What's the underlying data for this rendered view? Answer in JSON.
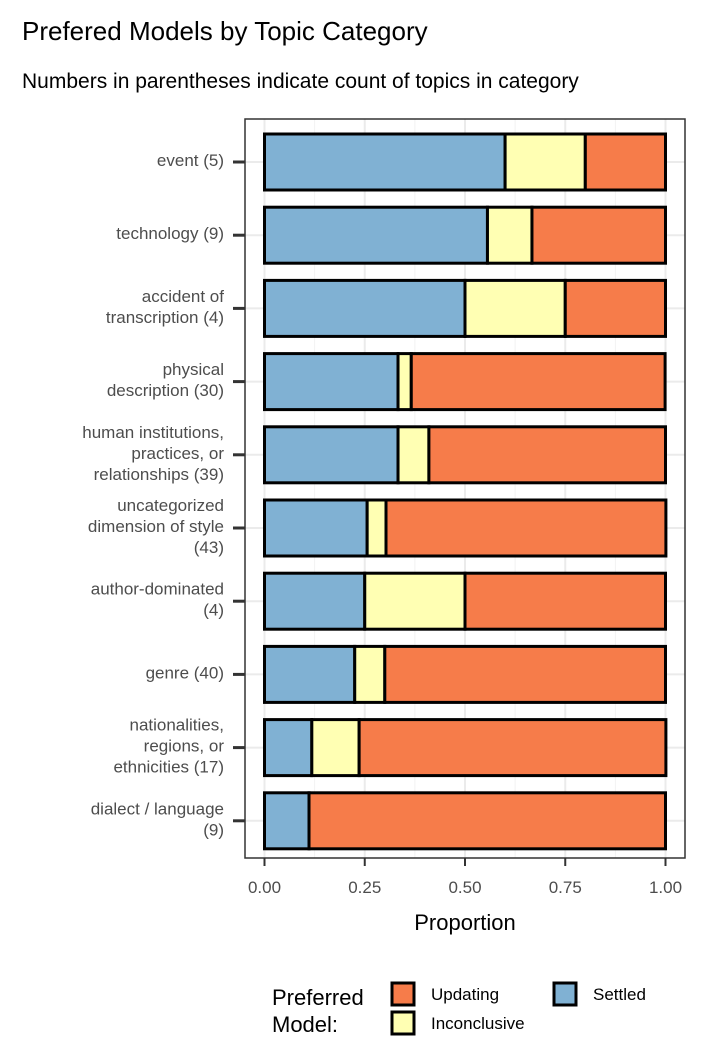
{
  "title": "Prefered Models by Topic Category",
  "subtitle": "Numbers in parentheses indicate count of topics in category",
  "chart_data": {
    "type": "bar",
    "orientation": "horizontal",
    "stacked": true,
    "categories": [
      [
        "event (5)"
      ],
      [
        "technology (9)"
      ],
      [
        "accident of",
        "transcription (4)"
      ],
      [
        "physical",
        "description (30)"
      ],
      [
        "human institutions,",
        "practices, or",
        "relationships (39)"
      ],
      [
        "uncategorized",
        "dimension of style",
        "(43)"
      ],
      [
        "author-dominated",
        "(4)"
      ],
      [
        "genre (40)"
      ],
      [
        "nationalities,",
        "regions, or",
        "ethnicities (17)"
      ],
      [
        "dialect / language",
        "(9)"
      ]
    ],
    "series": [
      {
        "name": "Settled",
        "color": "#80b1d3",
        "values": [
          0.6,
          0.556,
          0.5,
          0.333,
          0.333,
          0.256,
          0.25,
          0.225,
          0.118,
          0.111
        ]
      },
      {
        "name": "Inconclusive",
        "color": "#ffffb3",
        "values": [
          0.2,
          0.111,
          0.25,
          0.033,
          0.077,
          0.047,
          0.25,
          0.075,
          0.118,
          0.0
        ]
      },
      {
        "name": "Updating",
        "color": "#f67c4a",
        "values": [
          0.2,
          0.333,
          0.25,
          0.633,
          0.59,
          0.698,
          0.5,
          0.7,
          0.765,
          0.889
        ]
      }
    ],
    "xlabel": "Proportion",
    "ylabel": "",
    "xlim": [
      0,
      1
    ],
    "xticks": [
      "0.00",
      "0.25",
      "0.50",
      "0.75",
      "1.00"
    ],
    "grid": true,
    "legend": {
      "title": [
        "Preferred",
        "Model:"
      ],
      "placement": "bottom",
      "entries": [
        "Updating",
        "Settled",
        "Inconclusive"
      ]
    }
  }
}
